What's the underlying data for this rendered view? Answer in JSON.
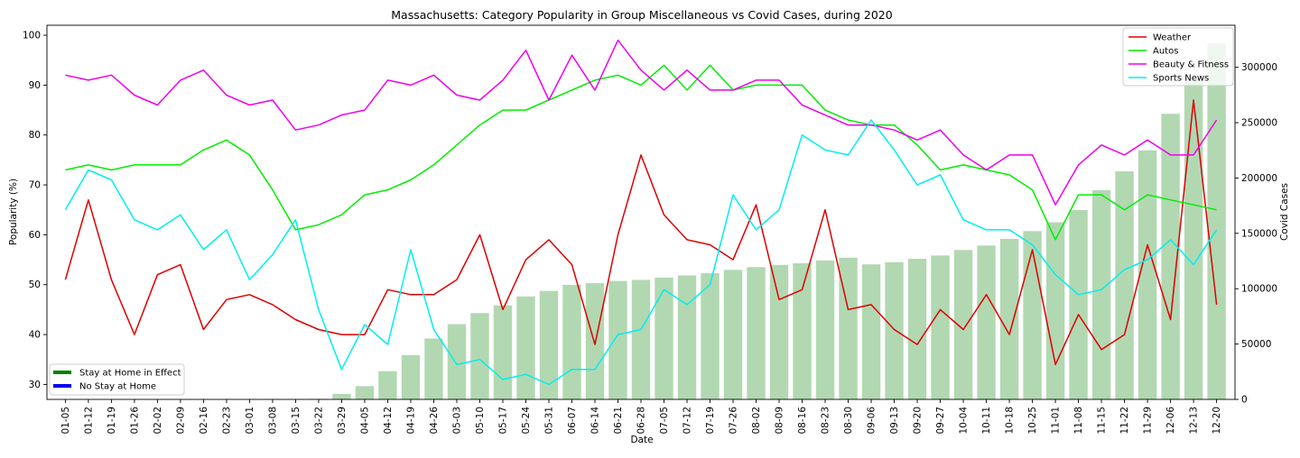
{
  "chart_data": {
    "type": "line+bar",
    "title": "Massachusetts: Category Popularity in Group Miscellaneous vs Covid Cases, during 2020",
    "xlabel": "Date",
    "ylabel": "Popularity (%)",
    "y2label": "Covid Cases",
    "ylim": [
      27,
      102
    ],
    "y2lim": [
      0,
      338000
    ],
    "yticks": [
      30,
      40,
      50,
      60,
      70,
      80,
      90,
      100
    ],
    "y2ticks": [
      0,
      50000,
      100000,
      150000,
      200000,
      250000,
      300000
    ],
    "y2ticklabels": [
      "0",
      "50000",
      "100000",
      "150000",
      "200000",
      "250000",
      "300000"
    ],
    "categories": [
      "01-05",
      "01-12",
      "01-19",
      "01-26",
      "02-02",
      "02-09",
      "02-16",
      "02-23",
      "03-01",
      "03-08",
      "03-15",
      "03-22",
      "03-29",
      "04-05",
      "04-12",
      "04-19",
      "04-26",
      "05-03",
      "05-10",
      "05-17",
      "05-24",
      "05-31",
      "06-07",
      "06-14",
      "06-21",
      "06-28",
      "07-05",
      "07-12",
      "07-19",
      "07-26",
      "08-02",
      "08-09",
      "08-16",
      "08-23",
      "08-30",
      "09-06",
      "09-13",
      "09-20",
      "09-27",
      "10-04",
      "10-11",
      "10-18",
      "10-25",
      "11-01",
      "11-08",
      "11-15",
      "11-22",
      "11-29",
      "12-06",
      "12-13",
      "12-20"
    ],
    "series": [
      {
        "name": "Weather",
        "color": "#dd0000",
        "values": [
          51,
          67,
          51,
          40,
          52,
          54,
          41,
          47,
          48,
          46,
          43,
          41,
          40,
          40,
          49,
          48,
          48,
          51,
          60,
          45,
          55,
          59,
          54,
          38,
          60,
          76,
          64,
          59,
          58,
          55,
          66,
          47,
          49,
          65,
          45,
          46,
          41,
          38,
          45,
          41,
          48,
          40,
          57,
          34,
          44,
          37,
          40,
          58,
          43,
          87,
          46
        ]
      },
      {
        "name": "Autos",
        "color": "#00ee00",
        "values": [
          73,
          74,
          73,
          74,
          74,
          74,
          77,
          79,
          76,
          69,
          61,
          62,
          64,
          68,
          69,
          71,
          74,
          78,
          82,
          85,
          85,
          87,
          89,
          91,
          92,
          90,
          94,
          89,
          94,
          89,
          90,
          90,
          90,
          85,
          83,
          82,
          82,
          78,
          73,
          74,
          73,
          72,
          69,
          59,
          68,
          68,
          65,
          68,
          67,
          66,
          65
        ]
      },
      {
        "name": "Beauty & Fitness",
        "color": "#ee00ee",
        "values": [
          92,
          91,
          92,
          88,
          86,
          91,
          93,
          88,
          86,
          87,
          81,
          82,
          84,
          85,
          91,
          90,
          92,
          88,
          87,
          91,
          97,
          87,
          96,
          89,
          99,
          93,
          89,
          93,
          89,
          89,
          91,
          91,
          86,
          84,
          82,
          82,
          81,
          79,
          81,
          76,
          73,
          76,
          76,
          66,
          74,
          78,
          76,
          79,
          76,
          76,
          83
        ]
      },
      {
        "name": "Sports News",
        "color": "#00eeee",
        "values": [
          65,
          73,
          71,
          63,
          61,
          64,
          57,
          61,
          51,
          56,
          63,
          45,
          33,
          42,
          38,
          57,
          41,
          34,
          35,
          31,
          32,
          30,
          33,
          33,
          40,
          41,
          49,
          46,
          50,
          68,
          61,
          65,
          80,
          77,
          76,
          83,
          77,
          70,
          72,
          63,
          61,
          61,
          58,
          52,
          48,
          49,
          53,
          55,
          59,
          54,
          61
        ]
      }
    ],
    "bars": {
      "name": "Covid Cases",
      "color": "#b2d8b2",
      "values": [
        0,
        0,
        0,
        0,
        0,
        0,
        0,
        0,
        0,
        0,
        0,
        500,
        5000,
        12000,
        25500,
        40000,
        55000,
        68000,
        78000,
        85000,
        93000,
        98000,
        103500,
        105000,
        107000,
        108000,
        110000,
        112000,
        114000,
        117000,
        119500,
        121500,
        123000,
        125500,
        128000,
        122000,
        124000,
        127000,
        130000,
        135000,
        139000,
        145000,
        152000,
        160000,
        171000,
        189000,
        206000,
        225000,
        258000,
        290000,
        322000
      ]
    },
    "legends": {
      "series_legend_position": "top-right",
      "shading_legend_position": "lower-left",
      "shading_items": [
        {
          "label": "Stay at Home in Effect",
          "color": "#008000"
        },
        {
          "label": "No Stay at Home",
          "color": "#0000ee"
        }
      ]
    },
    "grid": false
  }
}
